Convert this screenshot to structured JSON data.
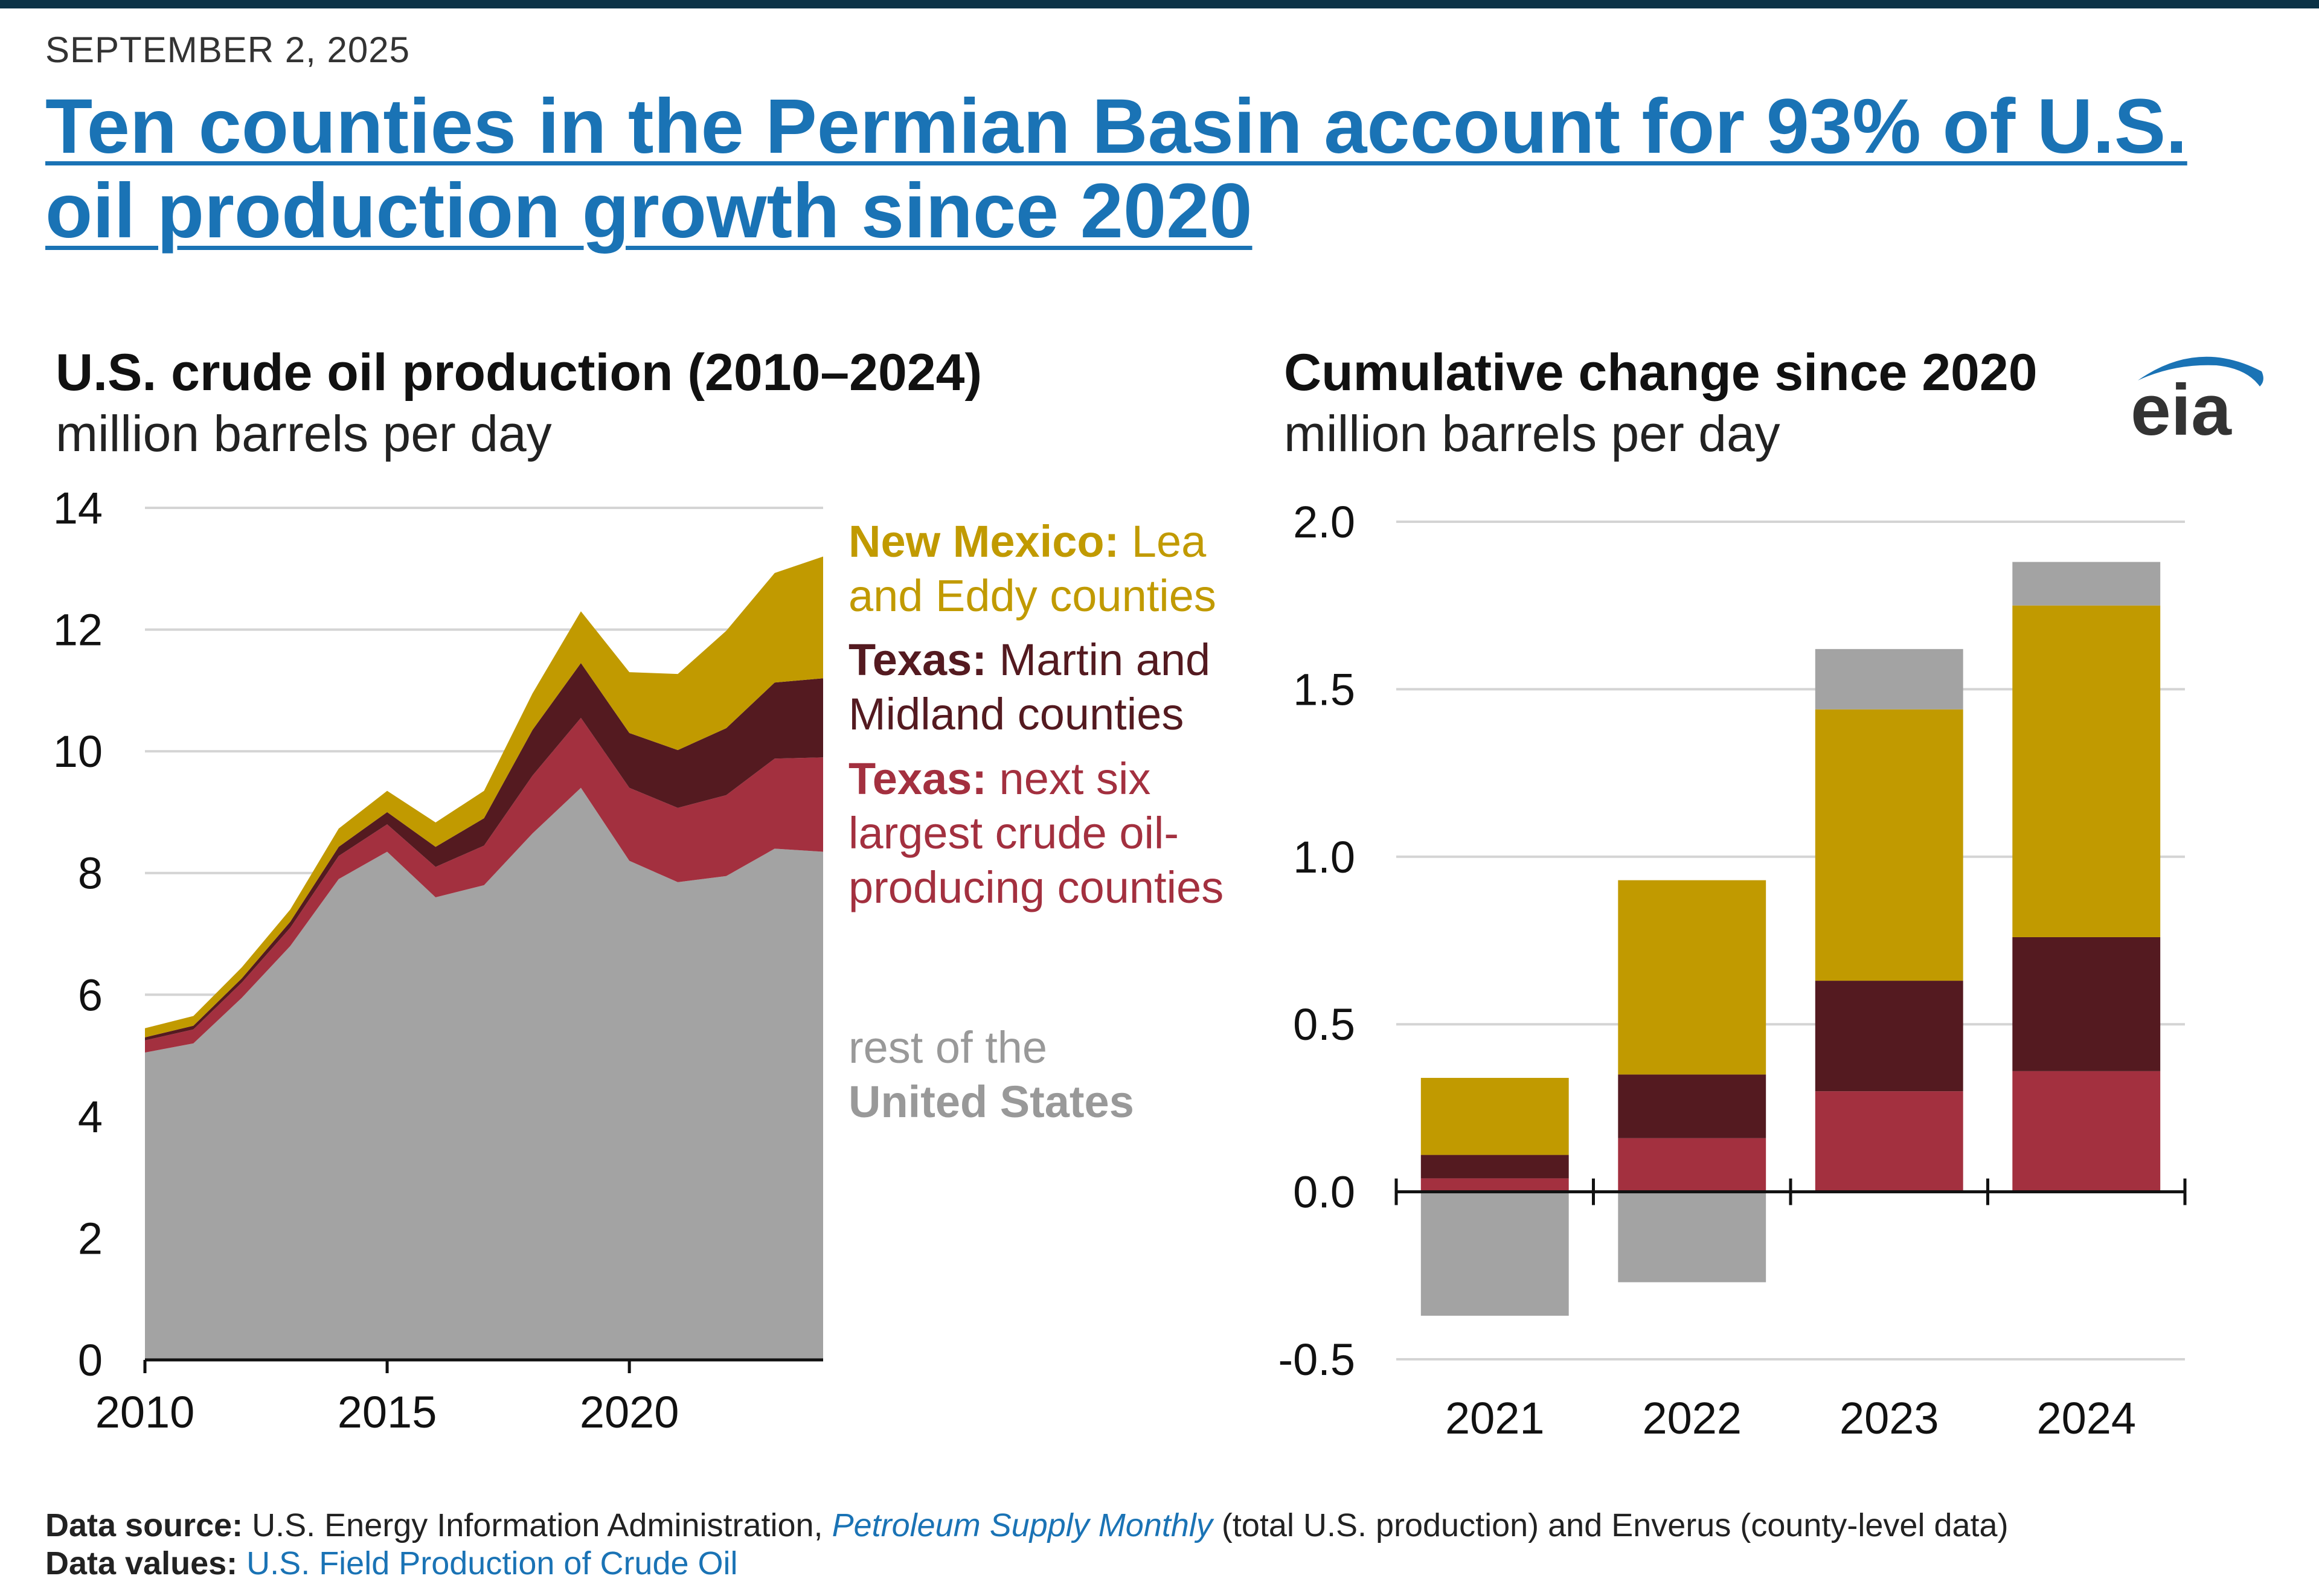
{
  "header": {
    "date": "SEPTEMBER 2, 2025",
    "headline": "Ten counties in the Permian Basin account for 93% of U.S. oil production growth since 2020"
  },
  "logo": {
    "text": "eia",
    "icon": "eia-logo-icon"
  },
  "colors": {
    "new_mexico": "#c19a00",
    "tx_martin_midland": "#541a20",
    "tx_next_six": "#a3303f",
    "rest_us": "#a3a3a3",
    "headline": "#1a73b5",
    "top_bar": "#0b3246"
  },
  "chart_data": [
    {
      "type": "area",
      "stacked": true,
      "title": "U.S. crude oil production (2010–2024)",
      "subtitle": "million barrels per day",
      "x": [
        2010,
        2011,
        2012,
        2013,
        2014,
        2015,
        2016,
        2017,
        2018,
        2019,
        2020,
        2021,
        2022,
        2023,
        2024
      ],
      "xticks": [
        "2010",
        "2015",
        "2020"
      ],
      "yticks": [
        "0",
        "2",
        "4",
        "6",
        "8",
        "10",
        "12",
        "14"
      ],
      "ylim": [
        0,
        14
      ],
      "series": [
        {
          "name": "rest of the United States",
          "values": [
            5.05,
            5.2,
            5.95,
            6.8,
            7.9,
            8.35,
            7.6,
            7.8,
            8.65,
            9.4,
            8.2,
            7.85,
            7.95,
            8.4,
            8.35
          ]
        },
        {
          "name": "Texas: next six largest crude oil-producing counties",
          "values": [
            0.2,
            0.23,
            0.25,
            0.3,
            0.38,
            0.45,
            0.5,
            0.65,
            0.95,
            1.15,
            1.2,
            1.22,
            1.33,
            1.48,
            1.55
          ]
        },
        {
          "name": "Texas: Martin and Midland counties",
          "values": [
            0.05,
            0.06,
            0.07,
            0.1,
            0.15,
            0.2,
            0.33,
            0.45,
            0.75,
            0.9,
            0.9,
            0.95,
            1.1,
            1.25,
            1.3
          ]
        },
        {
          "name": "New Mexico: Lea and Eddy counties",
          "values": [
            0.15,
            0.16,
            0.18,
            0.2,
            0.3,
            0.35,
            0.4,
            0.45,
            0.6,
            0.85,
            1.0,
            1.25,
            1.6,
            1.8,
            2.0
          ]
        }
      ],
      "legend": [
        {
          "bold": "New Mexico:",
          "rest": "Lea and Eddy counties",
          "color": "#c19a00"
        },
        {
          "bold": "Texas:",
          "rest": "Martin and Midland counties",
          "color": "#541a20"
        },
        {
          "bold": "Texas:",
          "rest": "next six largest crude oil-producing counties",
          "color": "#a3303f"
        },
        {
          "line1": "rest of the",
          "bold": "United States",
          "color": "#999999"
        }
      ]
    },
    {
      "type": "bar",
      "stacked": true,
      "title": "Cumulative change since 2020",
      "subtitle": "million barrels per day",
      "categories": [
        "2021",
        "2022",
        "2023",
        "2024"
      ],
      "yticks": [
        "2.0",
        "1.5",
        "1.0",
        "0.5",
        "0.0",
        "-0.5"
      ],
      "ylim": [
        -0.5,
        2.0
      ],
      "series": [
        {
          "name": "Texas: next six largest crude oil-producing counties",
          "values": [
            0.04,
            0.16,
            0.3,
            0.36
          ]
        },
        {
          "name": "Texas: Martin and Midland counties",
          "values": [
            0.07,
            0.19,
            0.33,
            0.4
          ]
        },
        {
          "name": "New Mexico: Lea and Eddy counties",
          "values": [
            0.23,
            0.58,
            0.81,
            0.99
          ]
        },
        {
          "name": "rest of the United States",
          "values": [
            -0.37,
            -0.27,
            0.18,
            0.13
          ]
        }
      ]
    }
  ],
  "footer": {
    "source_label": "Data source:",
    "source_text_1": "U.S. Energy Information Administration,",
    "source_link": "Petroleum Supply Monthly",
    "source_text_2": "(total U.S. production) and Enverus (county-level data)",
    "values_label": "Data values:",
    "values_link": "U.S. Field Production of Crude Oil"
  }
}
